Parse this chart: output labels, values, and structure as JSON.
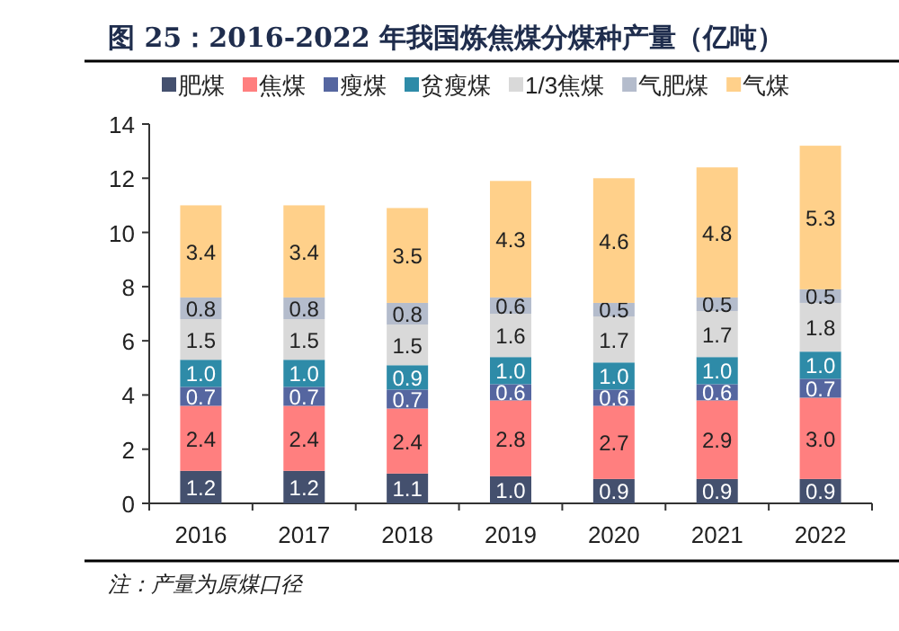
{
  "chart_data": {
    "type": "bar",
    "stacked": true,
    "title": "图 25：2016-2022 年我国炼焦煤分煤种产量（亿吨）",
    "categories": [
      "2016",
      "2017",
      "2018",
      "2019",
      "2020",
      "2021",
      "2022"
    ],
    "series": [
      {
        "name": "肥煤",
        "color": "#44506e",
        "values": [
          1.2,
          1.2,
          1.1,
          1.0,
          0.9,
          0.9,
          0.9
        ],
        "value_labels": [
          "1.2",
          "1.2",
          "1.1",
          "1.0",
          "0.9",
          "0.9",
          "0.9"
        ]
      },
      {
        "name": "焦煤",
        "color": "#ff7f7f",
        "values": [
          2.4,
          2.4,
          2.4,
          2.8,
          2.7,
          2.9,
          3.0
        ],
        "value_labels": [
          "2.4",
          "2.4",
          "2.4",
          "2.8",
          "2.7",
          "2.9",
          "3.0"
        ]
      },
      {
        "name": "瘦煤",
        "color": "#5566a0",
        "values": [
          0.7,
          0.7,
          0.7,
          0.6,
          0.6,
          0.6,
          0.7
        ],
        "value_labels": [
          "0.7",
          "0.7",
          "0.7",
          "0.6",
          "0.6",
          "0.6",
          "0.7"
        ]
      },
      {
        "name": "贫瘦煤",
        "color": "#2e8ba8",
        "values": [
          1.0,
          1.0,
          0.9,
          1.0,
          1.0,
          1.0,
          1.0
        ],
        "value_labels": [
          "1.0",
          "1.0",
          "0.9",
          "1.0",
          "1.0",
          "1.0",
          "1.0"
        ]
      },
      {
        "name": "1/3焦煤",
        "color": "#d9d9d9",
        "values": [
          1.5,
          1.5,
          1.5,
          1.6,
          1.7,
          1.7,
          1.8
        ],
        "value_labels": [
          "1.5",
          "1.5",
          "1.5",
          "1.6",
          "1.7",
          "1.7",
          "1.8"
        ]
      },
      {
        "name": "气肥煤",
        "color": "#b4bccc",
        "values": [
          0.8,
          0.8,
          0.8,
          0.6,
          0.5,
          0.5,
          0.5
        ],
        "value_labels": [
          "0.8",
          "0.8",
          "0.8",
          "0.6",
          "0.5",
          "0.5",
          "0.5"
        ]
      },
      {
        "name": "气煤",
        "color": "#ffd08a",
        "values": [
          3.4,
          3.4,
          3.5,
          4.3,
          4.6,
          4.8,
          5.3
        ],
        "value_labels": [
          "3.4",
          "3.4",
          "3.5",
          "4.3",
          "4.6",
          "4.8",
          "5.3"
        ]
      }
    ],
    "ylim": [
      0,
      14
    ],
    "yticks": [
      0,
      2,
      4,
      6,
      8,
      10,
      12,
      14
    ],
    "legend": "top",
    "grid": false,
    "annotations": [
      "注：产量为原煤口径"
    ]
  }
}
